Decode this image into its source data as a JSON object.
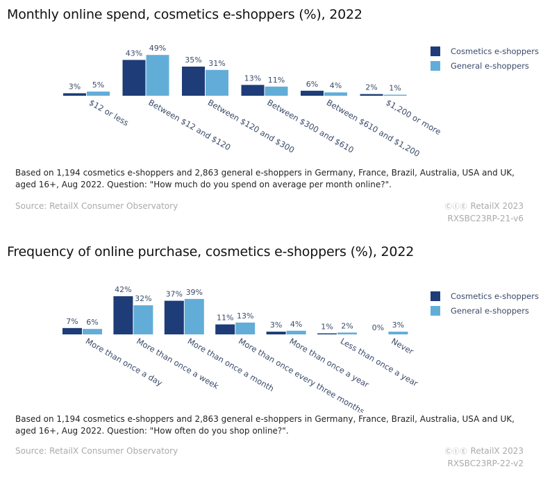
{
  "colors": {
    "cosmetics": "#1d3c78",
    "general": "#62add8",
    "text": "#3a4a6a"
  },
  "chart_data": [
    {
      "type": "bar",
      "title": "Monthly online spend, cosmetics e-shoppers (%), 2022",
      "categories": [
        "$12 or less",
        "Between $12 and $120",
        "Between $120 and $300",
        "Between $300 and $610",
        "Between $610 and $1,200",
        "$1,200 or more"
      ],
      "series": [
        {
          "name": "Cosmetics e-shoppers",
          "values": [
            3,
            43,
            35,
            13,
            6,
            2
          ],
          "labels": [
            "3%",
            "43%",
            "35%",
            "13%",
            "6%",
            "2%"
          ]
        },
        {
          "name": "General e-shoppers",
          "values": [
            5,
            49,
            31,
            11,
            4,
            1
          ],
          "labels": [
            "5%",
            "49%",
            "31%",
            "11%",
            "4%",
            "1%"
          ]
        }
      ],
      "legend": "top-right",
      "grid": false,
      "note": "Based on 1,194 cosmetics e-shoppers and 2,863 general e-shoppers in Germany, France, Brazil, Australia, USA and UK, aged 16+, Aug 2022. Question: \"How much do you spend on average per month online?\".",
      "source": "Source: RetailX Consumer Observatory",
      "brand": "RetailX 2023",
      "code": "RXSBC23RP-21-v6"
    },
    {
      "type": "bar",
      "title": "Frequency of online purchase, cosmetics e-shoppers (%), 2022",
      "categories": [
        "More than once a day",
        "More than once a week",
        "More than once a month",
        "More than once every three months",
        "More than once a year",
        "Less than once a year",
        "Never"
      ],
      "series": [
        {
          "name": "Cosmetics e-shoppers",
          "values": [
            7,
            42,
            37,
            11,
            3,
            1,
            0
          ],
          "labels": [
            "7%",
            "42%",
            "37%",
            "11%",
            "3%",
            "1%",
            "0%"
          ]
        },
        {
          "name": "General e-shoppers",
          "values": [
            6,
            32,
            39,
            13,
            4,
            2,
            3
          ],
          "labels": [
            "6%",
            "32%",
            "39%",
            "13%",
            "4%",
            "2%",
            "3%"
          ]
        }
      ],
      "legend": "top-right",
      "grid": false,
      "note": "Based on 1,194 cosmetics e-shoppers and 2,863 general e-shoppers in Germany, France, Brazil, Australia, USA and UK, aged 16+, Aug 2022. Question: \"How often do you shop online?\".",
      "source": "Source: RetailX Consumer Observatory",
      "brand": "RetailX 2023",
      "code": "RXSBC23RP-22-v2"
    }
  ]
}
